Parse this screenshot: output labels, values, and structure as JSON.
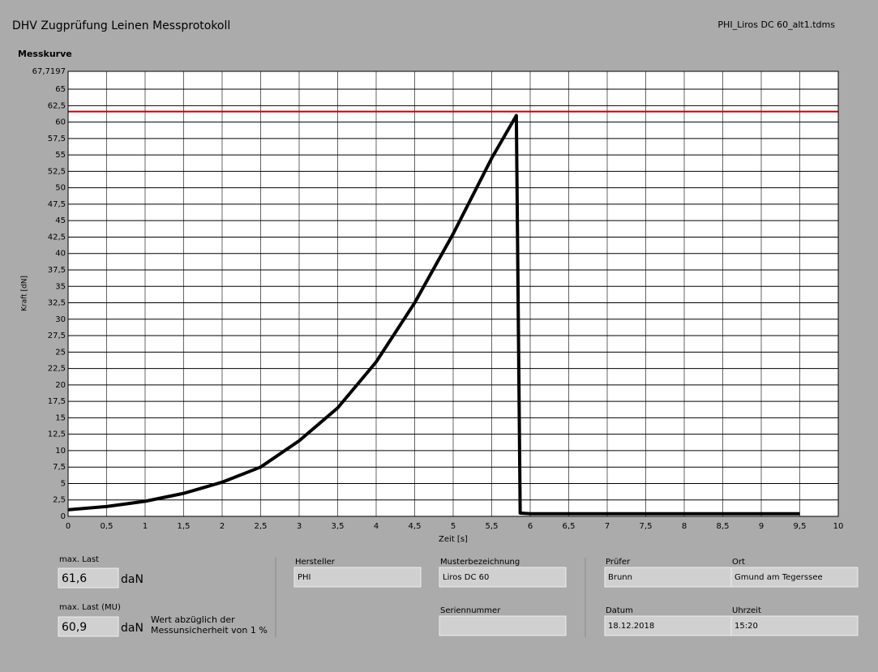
{
  "header": {
    "title": "DHV Zugprüfung Leinen Messprotokoll",
    "file": "PHI_Liros DC 60_alt1.tdms"
  },
  "chart_data": {
    "type": "line",
    "title": "Messkurve",
    "x_label": "Zeit [s]",
    "y_label": "Kraft [dN]",
    "x": [
      0,
      0.5,
      1,
      1.5,
      2,
      2.5,
      3,
      3.5,
      4,
      4.5,
      5,
      5.5,
      5.82,
      5.87,
      6,
      7,
      8,
      9,
      9.5
    ],
    "values": [
      1.0,
      1.5,
      2.3,
      3.5,
      5.2,
      7.5,
      11.5,
      16.5,
      23.5,
      32.5,
      43,
      54.5,
      61,
      0.5,
      0.4,
      0.4,
      0.4,
      0.4,
      0.4
    ],
    "color": "#000000",
    "reference_line": {
      "value": 61.6,
      "color": "#c00000"
    },
    "xlim": [
      0,
      10
    ],
    "xticks": [
      0,
      {
        "value": 0.5,
        "label": "0,5"
      },
      1,
      {
        "value": 1.5,
        "label": "1,5"
      },
      2,
      {
        "value": 2.5,
        "label": "2,5"
      },
      3,
      {
        "value": 3.5,
        "label": "3,5"
      },
      4,
      {
        "value": 4.5,
        "label": "4,5"
      },
      5,
      {
        "value": 5.5,
        "label": "5,5"
      },
      6,
      {
        "value": 6.5,
        "label": "6,5"
      },
      7,
      {
        "value": 7.5,
        "label": "7,5"
      },
      8,
      {
        "value": 8.5,
        "label": "8,5"
      },
      9,
      {
        "value": 9.5,
        "label": "9,5"
      },
      10
    ],
    "ylim": [
      0,
      67.7197
    ],
    "yticks": [
      0,
      {
        "value": 2.5,
        "label": "2,5"
      },
      5,
      {
        "value": 7.5,
        "label": "7,5"
      },
      10,
      {
        "value": 12.5,
        "label": "12,5"
      },
      15,
      {
        "value": 17.5,
        "label": "17,5"
      },
      20,
      {
        "value": 22.5,
        "label": "22,5"
      },
      25,
      {
        "value": 27.5,
        "label": "27,5"
      },
      30,
      {
        "value": 32.5,
        "label": "32,5"
      },
      35,
      {
        "value": 37.5,
        "label": "37,5"
      },
      40,
      {
        "value": 42.5,
        "label": "42,5"
      },
      45,
      {
        "value": 47.5,
        "label": "47,5"
      },
      50,
      {
        "value": 52.5,
        "label": "52,5"
      },
      55,
      {
        "value": 57.5,
        "label": "57,5"
      },
      60,
      {
        "value": 62.5,
        "label": "62,5"
      },
      65,
      {
        "value": 67.7197,
        "label": "67,7197"
      }
    ],
    "grid": true
  },
  "results": {
    "max_label": "max. Last",
    "max_value": "61,6",
    "max_unit": "daN",
    "mu_label": "max. Last (MU)",
    "mu_value": "60,9",
    "mu_unit": "daN",
    "mu_note": [
      "Wert abzüglich der",
      "Messunsicherheit von 1 %"
    ]
  },
  "fields": [
    {
      "label": "Hersteller",
      "value": "PHI"
    },
    {
      "label": "Musterbezeichnung",
      "value": "Liros DC 60"
    },
    {
      "label": "Seriennummer"
    },
    {
      "label": "Prüfer",
      "value": "Brunn"
    },
    {
      "label": "Ort",
      "value": "Gmund am Tegerssee"
    },
    {
      "label": "Datum",
      "value": "18.12.2018"
    },
    {
      "label": "Uhrzeit",
      "value": "15:20"
    }
  ]
}
